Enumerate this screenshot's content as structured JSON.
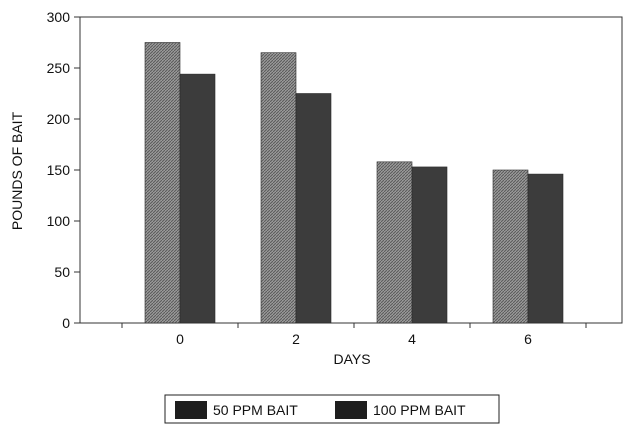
{
  "chart_data": {
    "type": "bar",
    "categories": [
      "0",
      "2",
      "4",
      "6"
    ],
    "series": [
      {
        "name": "50 PPM BAIT",
        "values": [
          275,
          265,
          158,
          150
        ],
        "color": "#8a8a8a"
      },
      {
        "name": "100 PPM BAIT",
        "values": [
          244,
          225,
          153,
          146
        ],
        "color": "#3c3c3c"
      }
    ],
    "xlabel": "DAYS",
    "ylabel": "POUNDS OF BAIT",
    "ylim": [
      0,
      300
    ],
    "yticks": [
      "0",
      "50",
      "100",
      "150",
      "200",
      "250",
      "300"
    ],
    "grid": false,
    "legend_position": "bottom"
  }
}
